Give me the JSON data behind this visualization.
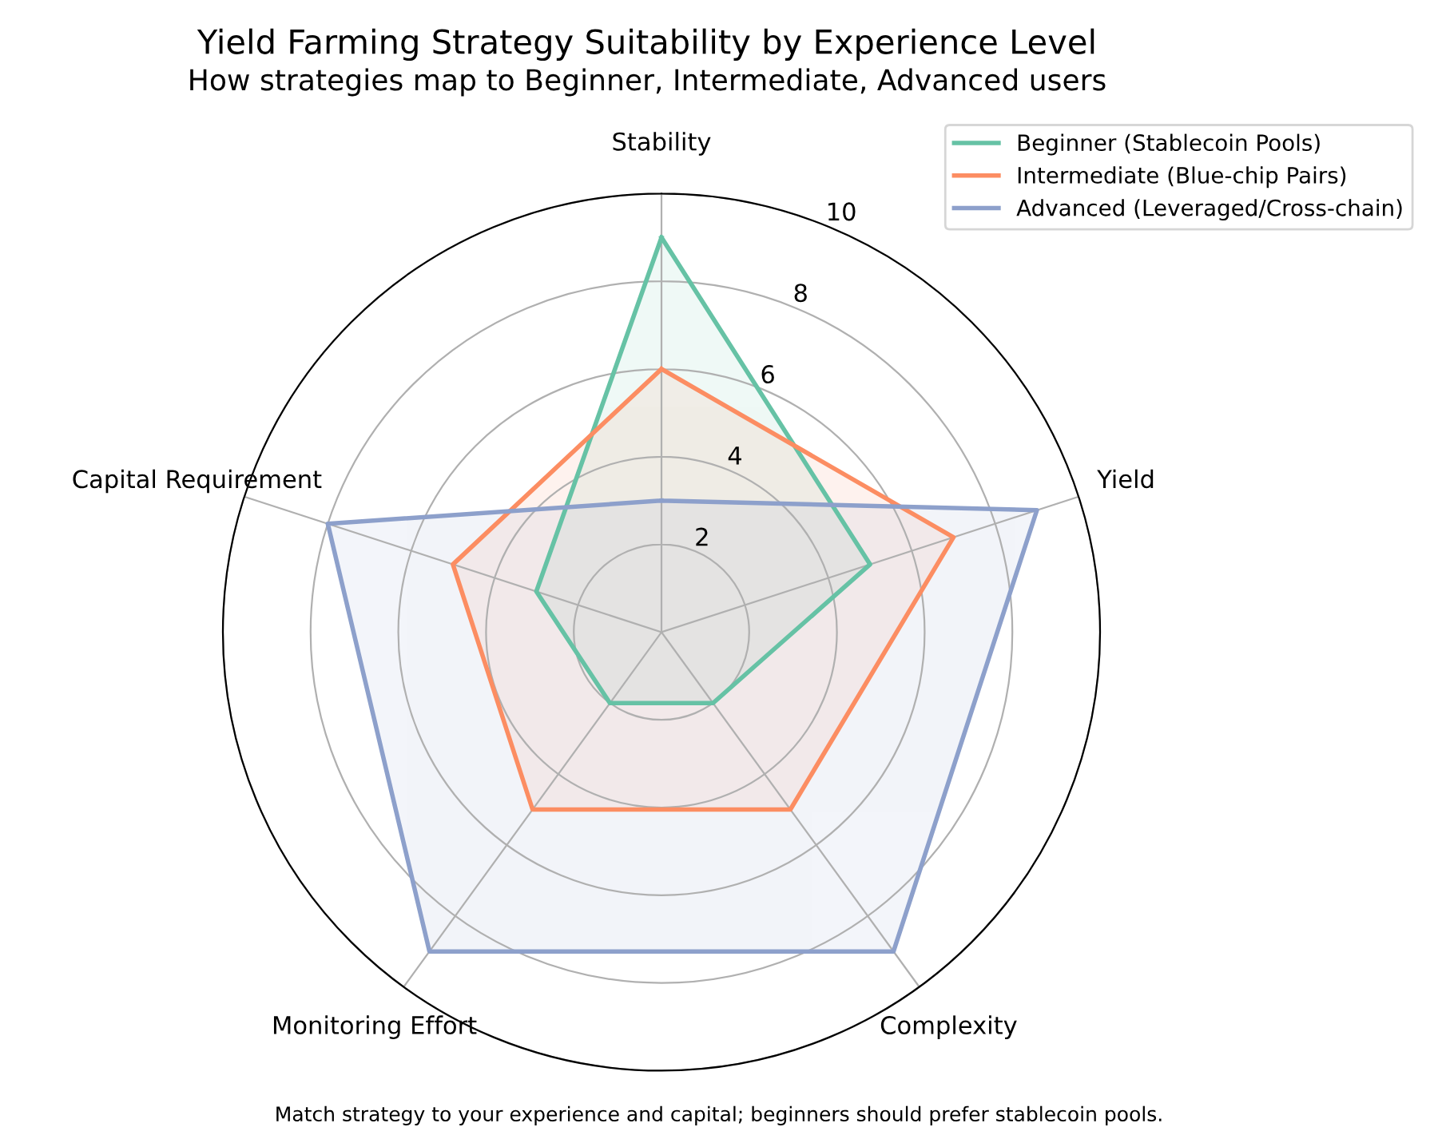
{
  "chart_data": {
    "type": "radar",
    "title": "Yield Farming Strategy Suitability by Experience Level",
    "subtitle": "How strategies map to Beginner, Intermediate, Advanced users",
    "categories": [
      "Stability",
      "Yield",
      "Complexity",
      "Monitoring Effort",
      "Capital Requirement"
    ],
    "series": [
      {
        "name": "Beginner (Stablecoin Pools)",
        "color": "#66c2a5",
        "values": [
          9,
          5,
          2,
          2,
          3
        ]
      },
      {
        "name": "Intermediate (Blue-chip Pairs)",
        "color": "#fc8d62",
        "values": [
          6,
          7,
          5,
          5,
          5
        ]
      },
      {
        "name": "Advanced (Leveraged/Cross-chain)",
        "color": "#8da0cb",
        "values": [
          3,
          9,
          9,
          9,
          8
        ]
      }
    ],
    "ylim": [
      0,
      10
    ],
    "yticks": [
      2,
      4,
      6,
      8,
      10
    ],
    "grid": true,
    "legend": "top right",
    "marker": "none",
    "line_style": "solid",
    "annotations": [
      "Match strategy to your experience and capital; beginners should prefer stablecoin pools."
    ]
  }
}
